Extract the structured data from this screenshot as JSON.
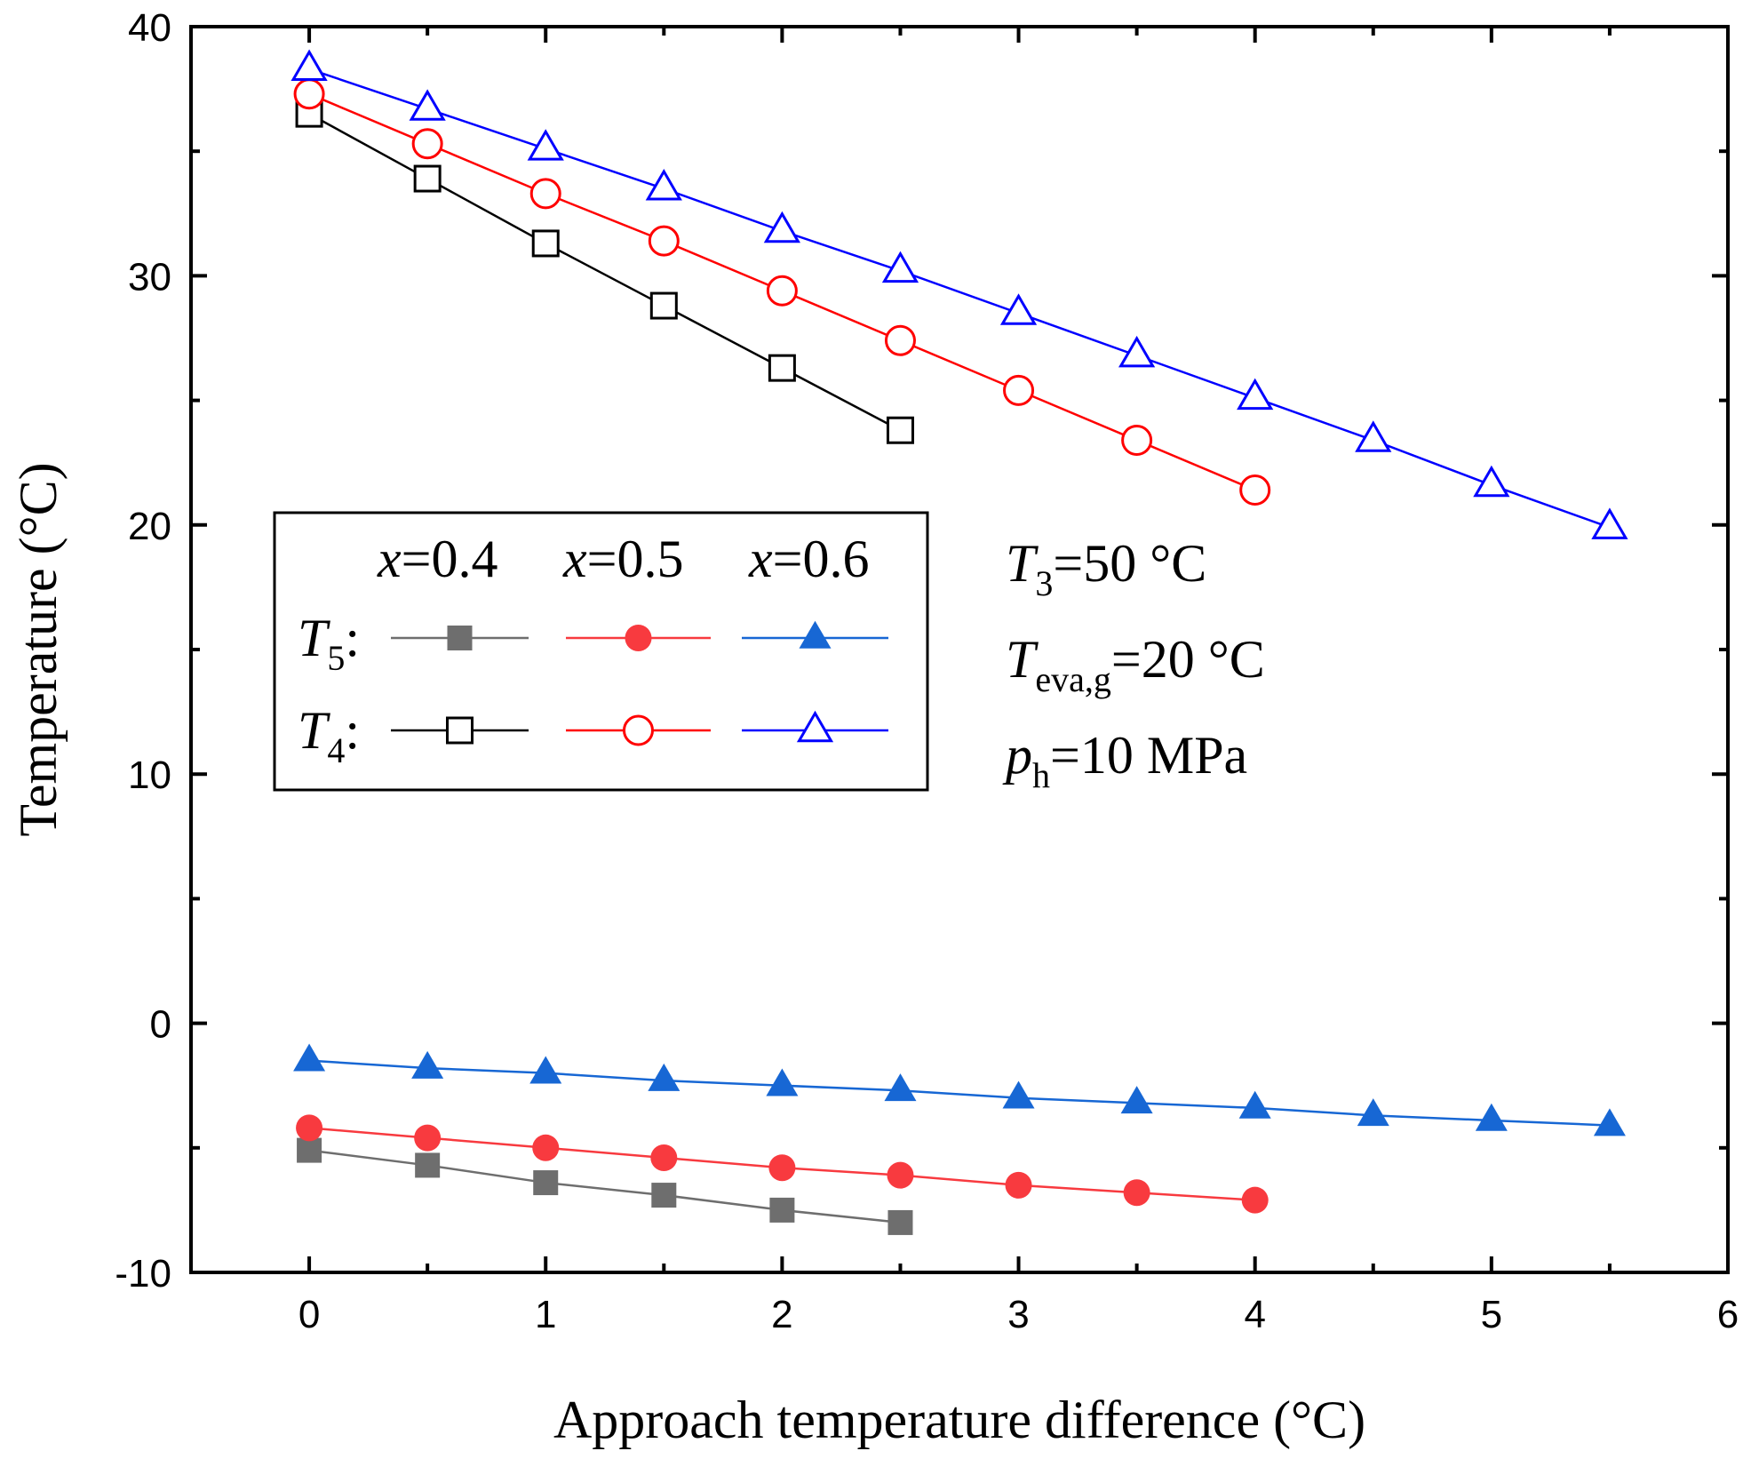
{
  "chart_data": {
    "type": "line",
    "title": "",
    "xlabel": "Approach temperature difference (°C)",
    "ylabel": "Temperature (°C)",
    "xlim": [
      -0.5,
      6
    ],
    "ylim": [
      -10,
      40
    ],
    "x_ticks": [
      0,
      1,
      2,
      3,
      4,
      5,
      6
    ],
    "y_ticks": [
      -10,
      0,
      10,
      20,
      30,
      40
    ],
    "x_tick_labels": [
      "0",
      "1",
      "2",
      "3",
      "4",
      "5",
      "6"
    ],
    "y_tick_labels": [
      "-10",
      "0",
      "10",
      "20",
      "30",
      "40"
    ],
    "series": [
      {
        "name": "T5, x=0.4",
        "marker": "filled-square",
        "color": "#6e6e6e",
        "x": [
          0,
          0.5,
          1,
          1.5,
          2,
          2.5
        ],
        "y": [
          -5.1,
          -5.7,
          -6.4,
          -6.9,
          -7.5,
          -8.0
        ]
      },
      {
        "name": "T5, x=0.5",
        "marker": "filled-circle",
        "color": "#f83a3f",
        "x": [
          0,
          0.5,
          1,
          1.5,
          2,
          2.5,
          3,
          3.5,
          4
        ],
        "y": [
          -4.2,
          -4.6,
          -5.0,
          -5.4,
          -5.8,
          -6.1,
          -6.5,
          -6.8,
          -7.1
        ]
      },
      {
        "name": "T5, x=0.6",
        "marker": "filled-triangle",
        "color": "#1767d4",
        "x": [
          0,
          0.5,
          1,
          1.5,
          2,
          2.5,
          3,
          3.5,
          4,
          4.5,
          5,
          5.5
        ],
        "y": [
          -1.5,
          -1.8,
          -2.0,
          -2.3,
          -2.5,
          -2.7,
          -3.0,
          -3.2,
          -3.4,
          -3.7,
          -3.9,
          -4.1
        ]
      },
      {
        "name": "T4, x=0.4",
        "marker": "open-square",
        "color": "#000000",
        "x": [
          0,
          0.5,
          1,
          1.5,
          2,
          2.5
        ],
        "y": [
          36.5,
          33.9,
          31.3,
          28.8,
          26.3,
          23.8
        ]
      },
      {
        "name": "T4, x=0.5",
        "marker": "open-circle",
        "color": "#ff0000",
        "x": [
          0,
          0.5,
          1,
          1.5,
          2,
          2.5,
          3,
          3.5,
          4
        ],
        "y": [
          37.3,
          35.3,
          33.3,
          31.4,
          29.4,
          27.4,
          25.4,
          23.4,
          21.4
        ]
      },
      {
        "name": "T4, x=0.6",
        "marker": "open-triangle",
        "color": "#0000ff",
        "x": [
          0,
          0.5,
          1,
          1.5,
          2,
          2.5,
          3,
          3.5,
          4,
          4.5,
          5,
          5.5
        ],
        "y": [
          38.3,
          36.7,
          35.1,
          33.5,
          31.8,
          30.2,
          28.5,
          26.8,
          25.1,
          23.4,
          21.6,
          19.9
        ]
      }
    ],
    "legend": {
      "position": "center-left",
      "columns": [
        {
          "var": "x",
          "eq": "=0.4"
        },
        {
          "var": "x",
          "eq": "=0.5"
        },
        {
          "var": "x",
          "eq": "=0.6"
        }
      ],
      "rows": [
        {
          "var": "T",
          "sub": "5",
          "suffix": ":"
        },
        {
          "var": "T",
          "sub": "4",
          "suffix": ":"
        }
      ]
    },
    "annotations": [
      {
        "var": "T",
        "sub": "3",
        "rest": "=50 °C"
      },
      {
        "var": "T",
        "sub": "eva,g",
        "rest": "=20 °C"
      },
      {
        "var": "p",
        "sub": "h",
        "rest": "=10 MPa"
      }
    ]
  }
}
